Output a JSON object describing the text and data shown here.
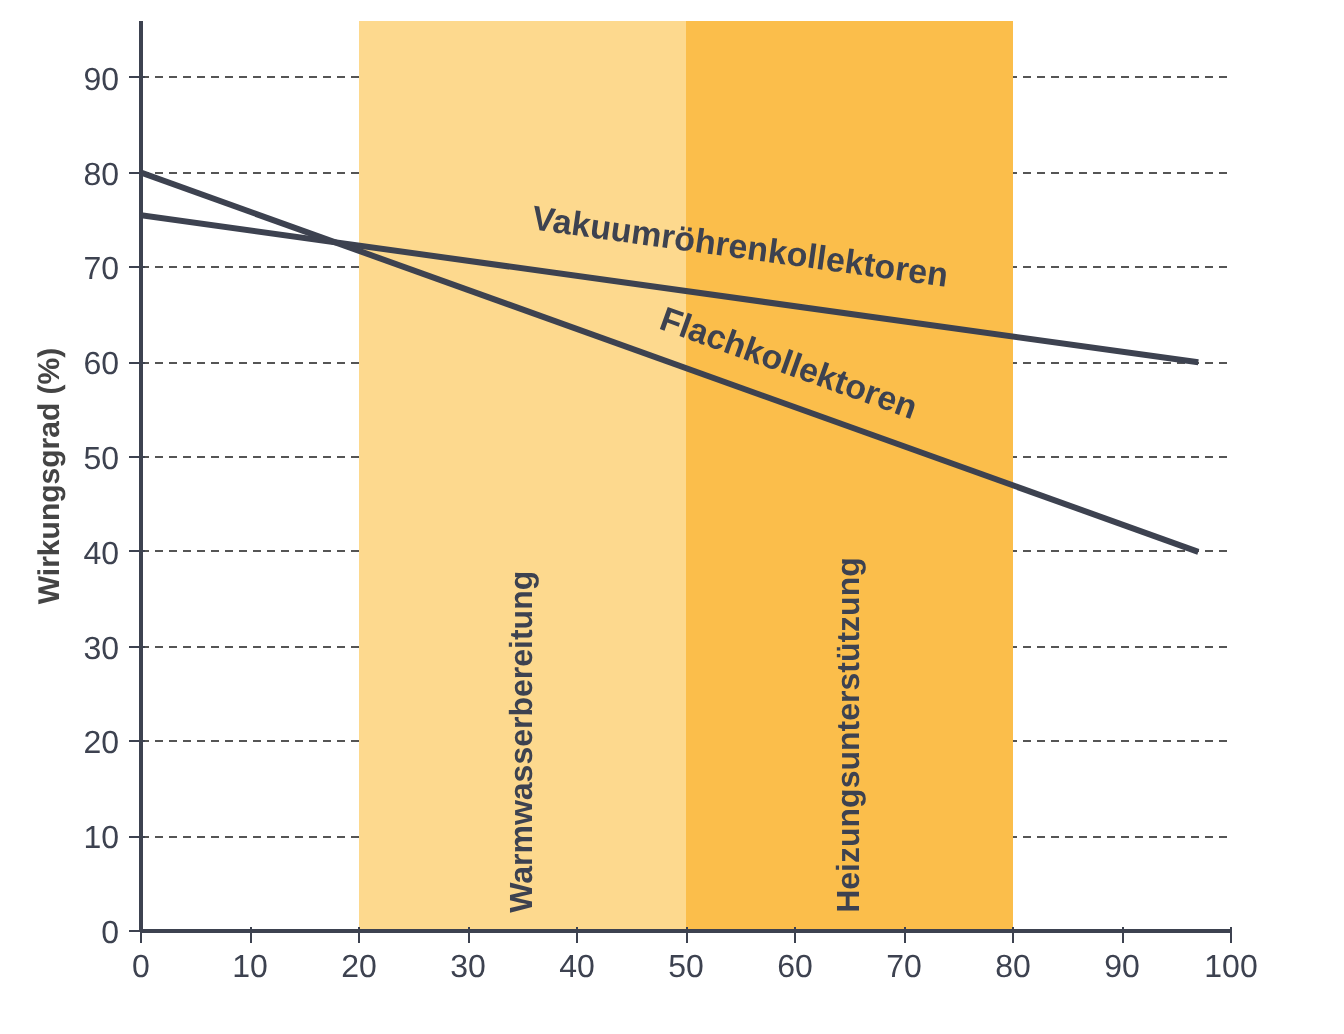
{
  "chart_data": {
    "type": "line",
    "ylabel": "Wirkungsgrad (%)",
    "xlim": [
      0,
      100
    ],
    "ylim": [
      0,
      96
    ],
    "xticks": [
      0,
      10,
      20,
      30,
      40,
      50,
      60,
      70,
      80,
      90,
      100
    ],
    "yticks": [
      0,
      10,
      20,
      30,
      40,
      50,
      60,
      70,
      80,
      90
    ],
    "grid": "y",
    "line_style": "solid",
    "marker": "none",
    "x": [
      0,
      97
    ],
    "series": [
      {
        "name": "Vakuumröhrenkollektoren",
        "color": "#3d4250",
        "values": [
          75.5,
          60
        ]
      },
      {
        "name": "Flachkollektoren",
        "color": "#3d4250",
        "values": [
          80,
          40
        ]
      }
    ],
    "bands": [
      {
        "axis": "x",
        "from": 20,
        "to": 50,
        "label": "Warmwasserbereitung",
        "color": "#fdd98e"
      },
      {
        "axis": "x",
        "from": 50,
        "to": 80,
        "label": "Heizungsunterstützung",
        "color": "#fbbe4b"
      }
    ]
  }
}
